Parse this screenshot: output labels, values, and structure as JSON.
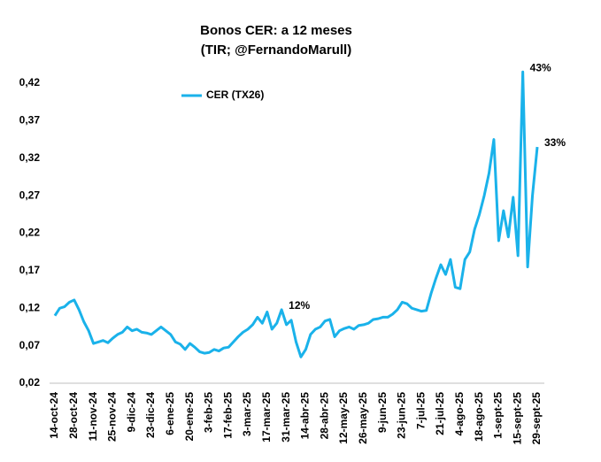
{
  "chart_data": {
    "type": "line",
    "title": "Bonos CER: a 12 meses",
    "subtitle": "(TIR; @FernandoMarull)",
    "categories": [
      "14-oct-24",
      null,
      null,
      null,
      "28-oct-24",
      null,
      null,
      null,
      "11-nov-24",
      null,
      null,
      null,
      "25-nov-24",
      null,
      null,
      null,
      "9-dic-24",
      null,
      null,
      null,
      "23-dic-24",
      null,
      null,
      null,
      "6-ene-25",
      null,
      null,
      null,
      "20-ene-25",
      null,
      null,
      null,
      "3-feb-25",
      null,
      null,
      null,
      "17-feb-25",
      null,
      null,
      null,
      "3-mar-25",
      null,
      null,
      null,
      "17-mar-25",
      null,
      null,
      null,
      "31-mar-25",
      null,
      null,
      null,
      "14-abr-25",
      null,
      null,
      null,
      "28-abr-25",
      null,
      null,
      null,
      "12-may-25",
      null,
      null,
      null,
      "26-may-25",
      null,
      null,
      null,
      "9-jun-25",
      null,
      null,
      null,
      "23-jun-25",
      null,
      null,
      null,
      "7-jul-25",
      null,
      null,
      null,
      "21-jul-25",
      null,
      null,
      null,
      "4-ago-25",
      null,
      null,
      null,
      "18-ago-25",
      null,
      null,
      null,
      "1-sept-25",
      null,
      null,
      null,
      "15-sept-25",
      null,
      null,
      null,
      "29-sept-25"
    ],
    "series": [
      {
        "name": "CER (TX26)",
        "color": "#1ab2ea",
        "values": [
          0.11,
          0.12,
          0.122,
          0.128,
          0.131,
          0.118,
          0.102,
          0.09,
          0.073,
          0.075,
          0.077,
          0.074,
          0.08,
          0.085,
          0.088,
          0.095,
          0.09,
          0.092,
          0.088,
          0.087,
          0.085,
          0.09,
          0.095,
          0.09,
          0.085,
          0.075,
          0.072,
          0.065,
          0.073,
          0.068,
          0.062,
          0.06,
          0.061,
          0.065,
          0.063,
          0.067,
          0.068,
          0.075,
          0.082,
          0.088,
          0.092,
          0.098,
          0.108,
          0.1,
          0.115,
          0.092,
          0.1,
          0.118,
          0.098,
          0.104,
          0.075,
          0.055,
          0.065,
          0.085,
          0.092,
          0.095,
          0.103,
          0.105,
          0.082,
          0.09,
          0.093,
          0.095,
          0.092,
          0.097,
          0.098,
          0.1,
          0.105,
          0.106,
          0.108,
          0.108,
          0.112,
          0.118,
          0.128,
          0.126,
          0.12,
          0.118,
          0.116,
          0.117,
          0.14,
          0.16,
          0.178,
          0.165,
          0.185,
          0.148,
          0.146,
          0.185,
          0.195,
          0.225,
          0.245,
          0.27,
          0.3,
          0.345,
          0.21,
          0.25,
          0.215,
          0.268,
          0.19,
          0.435,
          0.175,
          0.27,
          0.335
        ],
        "value_labels": [
          null,
          null,
          null,
          null,
          null,
          null,
          null,
          null,
          null,
          null,
          null,
          null,
          null,
          null,
          null,
          null,
          null,
          null,
          null,
          null,
          null,
          null,
          null,
          null,
          null,
          null,
          null,
          null,
          null,
          null,
          null,
          null,
          null,
          null,
          null,
          null,
          null,
          null,
          null,
          null,
          null,
          null,
          null,
          null,
          null,
          null,
          null,
          "12%",
          null,
          null,
          null,
          null,
          null,
          null,
          null,
          null,
          null,
          null,
          null,
          null,
          null,
          null,
          null,
          null,
          null,
          null,
          null,
          null,
          null,
          null,
          null,
          null,
          null,
          null,
          null,
          null,
          null,
          null,
          null,
          null,
          null,
          null,
          null,
          null,
          null,
          null,
          null,
          null,
          null,
          null,
          null,
          null,
          null,
          null,
          null,
          null,
          null,
          "43%",
          null,
          null,
          "33%"
        ]
      }
    ],
    "ylim": [
      0.02,
      0.45
    ],
    "yticks": [
      {
        "value": 0.02,
        "label": "0,02"
      },
      {
        "value": 0.07,
        "label": "0,07"
      },
      {
        "value": 0.12,
        "label": "0,12"
      },
      {
        "value": 0.17,
        "label": "0,17"
      },
      {
        "value": 0.22,
        "label": "0,22"
      },
      {
        "value": 0.27,
        "label": "0,27"
      },
      {
        "value": 0.32,
        "label": "0,32"
      },
      {
        "value": 0.37,
        "label": "0,37"
      },
      {
        "value": 0.42,
        "label": "0,42"
      }
    ],
    "grid": false,
    "legend": "top-left"
  }
}
